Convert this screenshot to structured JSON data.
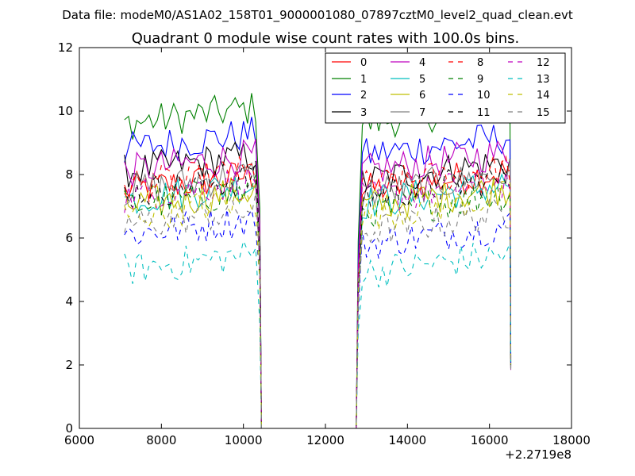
{
  "suptitle": "Data file: modeM0/AS1A02_158T01_9000001080_07897cztM0_level2_quad_clean.evt",
  "chart_data": {
    "type": "line",
    "title": "Quadrant 0 module wise count rates with 100.0s bins.",
    "xlabel": "",
    "ylabel": "",
    "x_offset_label": "+2.2719e8",
    "xlim": [
      6000,
      18000
    ],
    "ylim": [
      0,
      12
    ],
    "x_ticks": [
      6000,
      8000,
      10000,
      12000,
      14000,
      16000,
      18000
    ],
    "y_ticks": [
      0,
      2,
      4,
      6,
      8,
      10,
      12
    ],
    "grid": false,
    "legend_position": "top-right",
    "legend_columns": 4,
    "segments": [
      {
        "x_start": 7100,
        "x_end": 10300,
        "step": 100
      },
      {
        "x_start": 12900,
        "x_end": 16500,
        "step": 100
      }
    ],
    "series": [
      {
        "name": "0",
        "color": "#ff0000",
        "dashed": false,
        "level1": 7.5,
        "level2": 7.7
      },
      {
        "name": "1",
        "color": "#008000",
        "dashed": false,
        "level1": 9.6,
        "level2": 9.8
      },
      {
        "name": "2",
        "color": "#0000ff",
        "dashed": false,
        "level1": 8.8,
        "level2": 8.8
      },
      {
        "name": "3",
        "color": "#000000",
        "dashed": false,
        "level1": 8.1,
        "level2": 8.0
      },
      {
        "name": "4",
        "color": "#bf00bf",
        "dashed": false,
        "level1": 8.1,
        "level2": 8.3
      },
      {
        "name": "5",
        "color": "#00bfbf",
        "dashed": false,
        "level1": 7.2,
        "level2": 7.3
      },
      {
        "name": "6",
        "color": "#bfbf00",
        "dashed": false,
        "level1": 7.0,
        "level2": 7.2
      },
      {
        "name": "7",
        "color": "#808080",
        "dashed": false,
        "level1": 7.5,
        "level2": 7.6
      },
      {
        "name": "8",
        "color": "#ff0000",
        "dashed": true,
        "level1": 7.6,
        "level2": 7.8
      },
      {
        "name": "9",
        "color": "#008000",
        "dashed": true,
        "level1": 7.0,
        "level2": 7.0
      },
      {
        "name": "10",
        "color": "#0000ff",
        "dashed": true,
        "level1": 6.1,
        "level2": 6.0
      },
      {
        "name": "11",
        "color": "#000000",
        "dashed": true,
        "level1": 7.4,
        "level2": 7.5
      },
      {
        "name": "12",
        "color": "#bf00bf",
        "dashed": true,
        "level1": 7.3,
        "level2": 7.4
      },
      {
        "name": "13",
        "color": "#00bfbf",
        "dashed": true,
        "level1": 5.0,
        "level2": 5.1
      },
      {
        "name": "14",
        "color": "#bfbf00",
        "dashed": true,
        "level1": 6.7,
        "level2": 6.9
      },
      {
        "name": "15",
        "color": "#808080",
        "dashed": true,
        "level1": 6.4,
        "level2": 6.4
      }
    ]
  }
}
